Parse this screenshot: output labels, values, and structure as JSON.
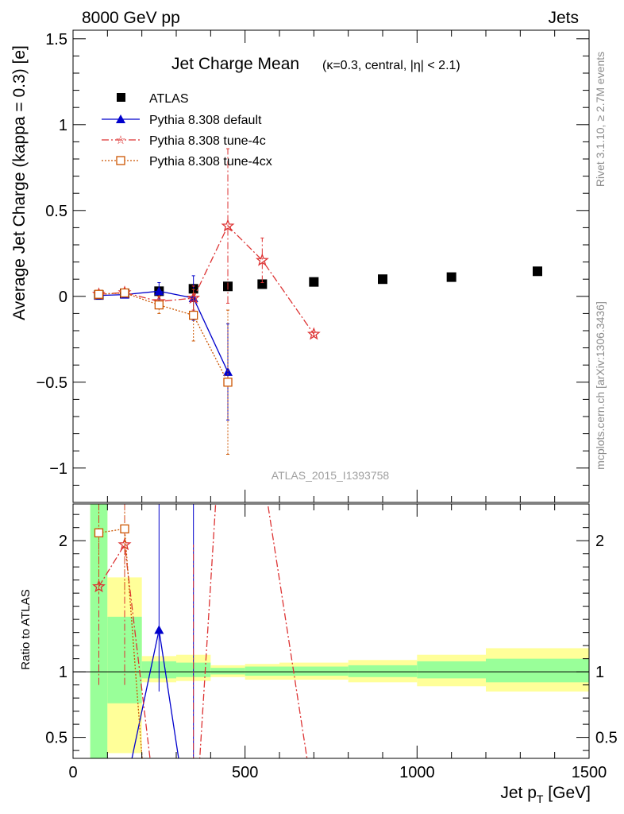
{
  "header": {
    "left": "8000 GeV pp",
    "right": "Jets"
  },
  "side_labels": {
    "top": "Rivet 3.1.10, ≥ 2.7M events",
    "bottom": "mcplots.cern.ch [arXiv:1306.3436]"
  },
  "watermark": "ATLAS_2015_I1393758",
  "chart_data": [
    {
      "type": "scatter",
      "title": "Jet Charge Mean",
      "subtitle": "(κ=0.3, central, |η| < 2.1)",
      "xlabel": "Jet p_T [GeV]",
      "ylabel": "Average Jet Charge (kappa = 0.3) [e]",
      "xlim": [
        0,
        1500
      ],
      "ylim": [
        -1.2,
        1.55
      ],
      "yticks": [
        -1,
        -0.5,
        0,
        0.5,
        1,
        1.5
      ],
      "ytick_labels": [
        "−1",
        "−0.5",
        "0",
        "0.5",
        "1",
        "1.5"
      ],
      "legend_placement": "top-left",
      "series": [
        {
          "name": "ATLAS",
          "color": "#000000",
          "marker": "square",
          "x": [
            75,
            150,
            250,
            350,
            450,
            550,
            700,
            900,
            1100,
            1350
          ],
          "y": [
            0.008,
            0.017,
            0.03,
            0.044,
            0.058,
            0.071,
            0.084,
            0.1,
            0.112,
            0.146
          ]
        },
        {
          "name": "Pythia 8.308 default",
          "color": "#0000cc",
          "marker": "triangle",
          "dash": "",
          "x": [
            75,
            150,
            250,
            350,
            450
          ],
          "y": [
            0.005,
            0.01,
            0.03,
            -0.01,
            -0.44
          ],
          "err": [
            0.01,
            0.015,
            0.05,
            0.13,
            0.28
          ]
        },
        {
          "name": "Pythia 8.308 tune-4c",
          "color": "#dd3333",
          "marker": "star",
          "dash": "9,3,2,3",
          "x": [
            75,
            150,
            250,
            350,
            450,
            550,
            700
          ],
          "y": [
            0.012,
            0.022,
            -0.03,
            -0.01,
            0.41,
            0.21,
            -0.22
          ],
          "err": [
            0.015,
            0.02,
            0.03,
            0.07,
            0.45,
            0.13,
            0.01
          ]
        },
        {
          "name": "Pythia 8.308 tune-4cx",
          "color": "#cc5500",
          "marker": "open-square",
          "dash": "2,2",
          "x": [
            75,
            150,
            250,
            350,
            450
          ],
          "y": [
            0.012,
            0.02,
            -0.05,
            -0.11,
            -0.5
          ],
          "err": [
            0.015,
            0.02,
            0.05,
            0.15,
            0.42
          ]
        }
      ]
    },
    {
      "type": "line",
      "ylabel": "Ratio to ATLAS",
      "xlim": [
        0,
        1500
      ],
      "ylim": [
        0.34,
        2.28
      ],
      "yticks": [
        0.5,
        1,
        2
      ],
      "ytick_labels": [
        "0.5",
        "1",
        "2"
      ],
      "xticks": [
        0,
        500,
        1000,
        1500
      ],
      "xtick_labels": [
        "0",
        "500",
        "1000",
        "1500"
      ],
      "bands": [
        {
          "xlo": 50,
          "xhi": 100,
          "y_lo": 0.3,
          "y_hi": 2.3,
          "g_lo": 0.3,
          "g_hi": 2.3
        },
        {
          "xlo": 100,
          "xhi": 200,
          "y_lo": 0.38,
          "y_hi": 1.72,
          "g_lo": 0.76,
          "g_hi": 1.42
        },
        {
          "xlo": 200,
          "xhi": 300,
          "y_lo": 0.92,
          "y_hi": 1.12,
          "g_lo": 0.95,
          "g_hi": 1.08
        },
        {
          "xlo": 300,
          "xhi": 400,
          "y_lo": 0.93,
          "y_hi": 1.13,
          "g_lo": 0.96,
          "g_hi": 1.07
        },
        {
          "xlo": 400,
          "xhi": 500,
          "y_lo": 0.96,
          "y_hi": 1.05,
          "g_lo": 0.98,
          "g_hi": 1.03
        },
        {
          "xlo": 500,
          "xhi": 600,
          "y_lo": 0.94,
          "y_hi": 1.06,
          "g_lo": 0.97,
          "g_hi": 1.04
        },
        {
          "xlo": 600,
          "xhi": 800,
          "y_lo": 0.94,
          "y_hi": 1.07,
          "g_lo": 0.97,
          "g_hi": 1.04
        },
        {
          "xlo": 800,
          "xhi": 1000,
          "y_lo": 0.92,
          "y_hi": 1.09,
          "g_lo": 0.96,
          "g_hi": 1.05
        },
        {
          "xlo": 1000,
          "xhi": 1200,
          "y_lo": 0.89,
          "y_hi": 1.13,
          "g_lo": 0.95,
          "g_hi": 1.08
        },
        {
          "xlo": 1200,
          "xhi": 1500,
          "y_lo": 0.85,
          "y_hi": 1.18,
          "g_lo": 0.92,
          "g_hi": 1.1
        }
      ],
      "band_colors": {
        "outer": "#ffff99",
        "inner": "#99ff99"
      },
      "series": [
        {
          "name": "Pythia 8.308 default",
          "color": "#0000cc",
          "marker": "triangle",
          "dash": "",
          "x": [
            160,
            250,
            315
          ],
          "y": [
            0.2,
            1.32,
            0.2
          ],
          "marker_x": [
            250
          ],
          "marker_y": [
            1.32
          ],
          "err_x": [
            250,
            350
          ],
          "err_lo": [
            0.85,
            0.2
          ],
          "err_hi": [
            2.3,
            2.3
          ]
        },
        {
          "name": "Pythia 8.308 tune-4c",
          "color": "#dd3333",
          "marker": "star",
          "dash": "9,3,2,3",
          "x": [
            75,
            150,
            230,
            365,
            415,
            565,
            680
          ],
          "y": [
            1.65,
            1.97,
            0.2,
            0.2,
            2.3,
            2.3,
            0.34
          ],
          "marker_x": [
            75,
            150
          ],
          "marker_y": [
            1.65,
            1.97
          ],
          "err_x": [
            75,
            150,
            350
          ],
          "err_lo": [
            0.9,
            0.9,
            0.3
          ],
          "err_hi": [
            2.3,
            2.3,
            1.97
          ]
        },
        {
          "name": "Pythia 8.308 tune-4cx",
          "color": "#cc5500",
          "marker": "open-square",
          "dash": "2,2",
          "x": [
            75,
            150,
            205
          ],
          "y": [
            2.06,
            2.09,
            0.2
          ],
          "marker_x": [
            75,
            150
          ],
          "marker_y": [
            2.06,
            2.09
          ],
          "err_x": [
            75,
            150
          ],
          "err_lo": [
            1.6,
            1.6
          ],
          "err_hi": [
            2.3,
            2.3
          ]
        }
      ]
    }
  ]
}
